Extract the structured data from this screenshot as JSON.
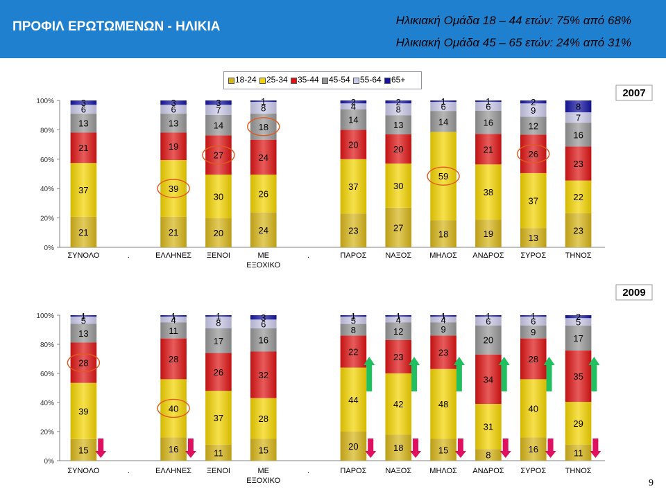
{
  "header": {
    "title": "ΠΡΟΦΙΛ ΕΡΩΤΩΜΕΝΩΝ - ΗΛΙΚΙΑ",
    "subtitle_lines": [
      "Ηλικιακή Ομάδα 18 – 44 ετών:  75% από 68%",
      "Ηλικιακή Ομάδα 45 – 65 ετών:  24% από 31%"
    ]
  },
  "colors": {
    "header": "#2080d0",
    "series": [
      "#d6b418",
      "#f2d200",
      "#dc1414",
      "#969696",
      "#c8c8e8",
      "#1414a0"
    ]
  },
  "page_number": "9",
  "chart_data": [
    {
      "type": "bar",
      "stacked": true,
      "normalized": true,
      "year_label": "2007",
      "categories": [
        "ΣΥΝΟΛΟ",
        ".",
        "ΕΛΛΗΝΕΣ",
        "ΞΕΝΟΙ",
        "ΜΕ ΕΞΟΧΙΚΟ",
        ".",
        "ΠΑΡΟΣ",
        "ΝΑΞΟΣ",
        "ΜΗΛΟΣ",
        "ΑΝΔΡΟΣ",
        "ΣΥΡΟΣ",
        "ΤΗΝΟΣ"
      ],
      "series": [
        {
          "name": "18-24",
          "values": [
            21,
            null,
            21,
            20,
            24,
            null,
            23,
            27,
            18,
            19,
            13,
            23
          ]
        },
        {
          "name": "25-34",
          "values": [
            37,
            null,
            39,
            30,
            26,
            null,
            37,
            30,
            59,
            38,
            37,
            22
          ]
        },
        {
          "name": "35-44",
          "values": [
            21,
            null,
            19,
            27,
            24,
            null,
            20,
            20,
            0,
            21,
            26,
            23
          ]
        },
        {
          "name": "45-54",
          "values": [
            13,
            null,
            13,
            14,
            18,
            null,
            14,
            13,
            14,
            16,
            12,
            16
          ]
        },
        {
          "name": "55-64",
          "values": [
            6,
            null,
            6,
            7,
            8,
            null,
            4,
            8,
            6,
            6,
            9,
            7
          ]
        },
        {
          "name": "65+",
          "values": [
            3,
            null,
            3,
            3,
            1,
            null,
            2,
            2,
            1,
            1,
            2,
            8
          ]
        }
      ],
      "yticks": [
        "0%",
        "20%",
        "40%",
        "60%",
        "80%",
        "100%"
      ],
      "ylim": [
        0,
        100
      ],
      "legend_position": "top",
      "circled_labels": [
        [
          2,
          1
        ],
        [
          3,
          2
        ],
        [
          4,
          3
        ],
        [
          8,
          1
        ],
        [
          10,
          2
        ]
      ]
    },
    {
      "type": "bar",
      "stacked": true,
      "normalized": true,
      "year_label": "2009",
      "categories": [
        "ΣΥΝΟΛΟ",
        ".",
        "ΕΛΛΗΝΕΣ",
        "ΞΕΝΟΙ",
        "ΜΕ ΕΞΟΧΙΚΟ",
        ".",
        "ΠΑΡΟΣ",
        "ΝΑΞΟΣ",
        "ΜΗΛΟΣ",
        "ΑΝΔΡΟΣ",
        "ΣΥΡΟΣ",
        "ΤΗΝΟΣ"
      ],
      "series": [
        {
          "name": "18-24",
          "values": [
            15,
            null,
            16,
            11,
            15,
            null,
            20,
            18,
            15,
            8,
            16,
            11
          ]
        },
        {
          "name": "25-34",
          "values": [
            39,
            null,
            40,
            37,
            28,
            null,
            44,
            42,
            48,
            31,
            40,
            29
          ]
        },
        {
          "name": "35-44",
          "values": [
            28,
            null,
            28,
            26,
            32,
            null,
            22,
            23,
            23,
            34,
            28,
            35
          ]
        },
        {
          "name": "45-54",
          "values": [
            13,
            null,
            11,
            17,
            16,
            null,
            8,
            12,
            9,
            20,
            9,
            17
          ]
        },
        {
          "name": "55-64",
          "values": [
            5,
            null,
            4,
            8,
            6,
            null,
            5,
            4,
            4,
            6,
            6,
            5
          ]
        },
        {
          "name": "65+",
          "values": [
            1,
            null,
            1,
            1,
            3,
            null,
            1,
            1,
            1,
            1,
            1,
            2
          ]
        }
      ],
      "yticks": [
        "0%",
        "20%",
        "40%",
        "60%",
        "80%",
        "100%"
      ],
      "ylim": [
        0,
        100
      ],
      "circled_labels": [
        [
          2,
          1
        ],
        [
          0,
          2
        ]
      ],
      "arrows_down": [
        0,
        2,
        6,
        7,
        8,
        9,
        10,
        11
      ],
      "arrows_up": [
        6,
        7,
        8,
        9,
        10,
        11
      ]
    }
  ]
}
